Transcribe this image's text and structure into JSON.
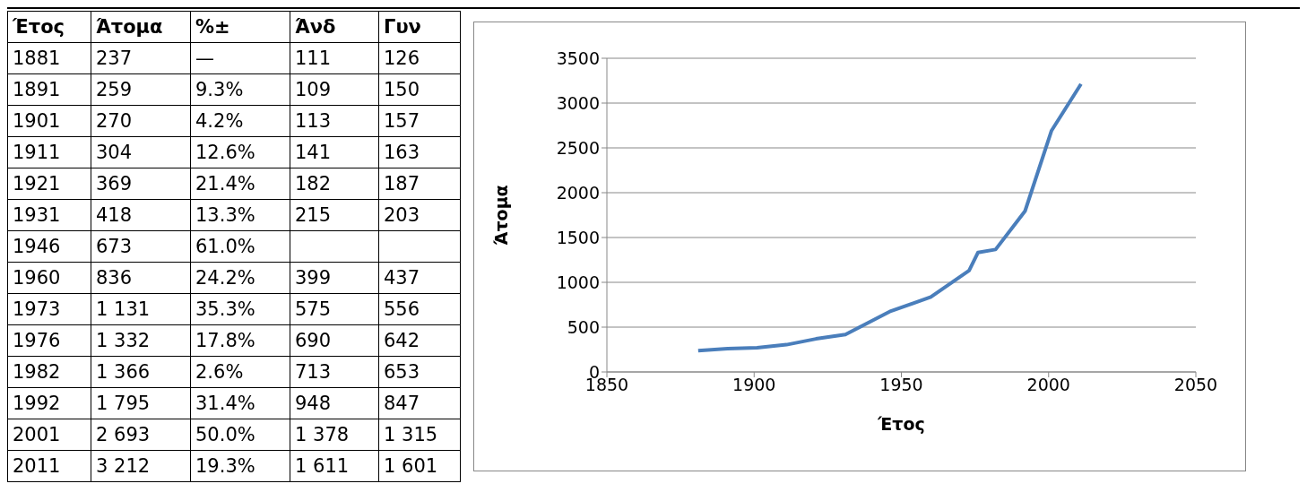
{
  "chart_data": [
    {
      "type": "other",
      "xlabel": "Έτος",
      "categories": [
        "1881",
        "1891",
        "1901",
        "1911",
        "1921",
        "1931",
        "1946",
        "1960",
        "1973",
        "1976",
        "1982",
        "1992",
        "2001",
        "2011"
      ],
      "series": [
        {
          "name": "Άτομα",
          "values": [
            237,
            259,
            270,
            304,
            369,
            418,
            673,
            836,
            1131,
            1332,
            1366,
            1795,
            2693,
            3212
          ],
          "value_labels": [
            "237",
            "259",
            "270",
            "304",
            "369",
            "418",
            "673",
            "836",
            "1 131",
            "1 332",
            "1 366",
            "1 795",
            "2 693",
            "3 212"
          ]
        },
        {
          "name": "%±",
          "values": [
            null,
            9.3,
            4.2,
            12.6,
            21.4,
            13.3,
            61.0,
            24.2,
            35.3,
            17.8,
            2.6,
            31.4,
            50.0,
            19.3
          ],
          "value_labels": [
            "—",
            "9.3%",
            "4.2%",
            "12.6%",
            "21.4%",
            "13.3%",
            "61.0%",
            "24.2%",
            "35.3%",
            "17.8%",
            "2.6%",
            "31.4%",
            "50.0%",
            "19.3%"
          ]
        },
        {
          "name": "Άνδ",
          "values": [
            111,
            109,
            113,
            141,
            182,
            215,
            null,
            399,
            575,
            690,
            713,
            948,
            1378,
            1611
          ],
          "value_labels": [
            "111",
            "109",
            "113",
            "141",
            "182",
            "215",
            null,
            "399",
            "575",
            "690",
            "713",
            "948",
            "1 378",
            "1 611"
          ]
        },
        {
          "name": "Γυν",
          "values": [
            126,
            150,
            157,
            163,
            187,
            203,
            null,
            437,
            556,
            642,
            653,
            847,
            1315,
            1601
          ],
          "value_labels": [
            "126",
            "150",
            "157",
            "163",
            "187",
            "203",
            null,
            "437",
            "556",
            "642",
            "653",
            "847",
            "1 315",
            "1 601"
          ]
        }
      ]
    },
    {
      "type": "line",
      "xlabel": "Έτος",
      "ylabel": "Άτομα",
      "x": [
        1881,
        1891,
        1901,
        1911,
        1921,
        1931,
        1946,
        1960,
        1973,
        1976,
        1982,
        1992,
        2001,
        2011
      ],
      "series": [
        {
          "color": "#4a7ebb",
          "values": [
            237,
            259,
            270,
            304,
            369,
            418,
            673,
            836,
            1131,
            1332,
            1366,
            1795,
            2693,
            3212
          ]
        }
      ],
      "xlim": [
        1850,
        2050
      ],
      "xticks": [
        1850,
        1900,
        1950,
        2000,
        2050
      ],
      "ylim": [
        0,
        3500
      ],
      "yticks": [
        0,
        500,
        1000,
        1500,
        2000,
        2500,
        3000,
        3500
      ],
      "grid": "y",
      "marker": "none",
      "line_style": "solid"
    }
  ]
}
